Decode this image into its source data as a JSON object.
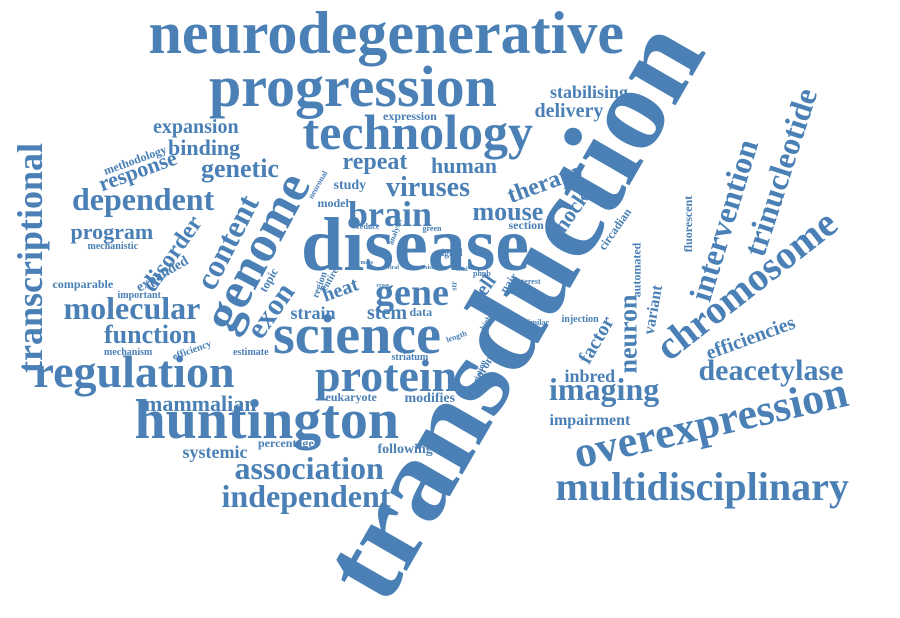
{
  "cloud": {
    "color": "#4a80b5",
    "words": [
      {
        "text": "transduction",
        "angle": -60
      },
      {
        "text": "disease",
        "angle": 0
      },
      {
        "text": "neurodegenerative",
        "angle": 0
      },
      {
        "text": "progression",
        "angle": 0
      },
      {
        "text": "technology",
        "angle": 0
      },
      {
        "text": "huntington",
        "angle": 0
      },
      {
        "text": "science",
        "angle": 0
      },
      {
        "text": "overexpression",
        "angle": -13
      },
      {
        "text": "multidisciplinary",
        "angle": 0
      },
      {
        "text": "chromosome",
        "angle": -38
      },
      {
        "text": "regulation",
        "angle": 0
      },
      {
        "text": "protein",
        "angle": 0
      },
      {
        "text": "transcriptional",
        "angle": -90
      },
      {
        "text": "genome",
        "angle": -62
      },
      {
        "text": "trinucleotide",
        "angle": -72
      },
      {
        "text": "intervention",
        "angle": -73
      },
      {
        "text": "gene",
        "angle": 0
      },
      {
        "text": "brain",
        "angle": 0
      },
      {
        "text": "association",
        "angle": 0
      },
      {
        "text": "independent",
        "angle": 0
      },
      {
        "text": "deacetylase",
        "angle": 0
      },
      {
        "text": "dependent",
        "angle": 0
      },
      {
        "text": "molecular",
        "angle": 0
      },
      {
        "text": "imaging",
        "angle": 0
      },
      {
        "text": "content",
        "angle": -63
      },
      {
        "text": "exon",
        "angle": -55
      },
      {
        "text": "viruses",
        "angle": 0
      },
      {
        "text": "mouse",
        "angle": 0
      },
      {
        "text": "function",
        "angle": 0
      },
      {
        "text": "efficiencies",
        "angle": -20
      },
      {
        "text": "genetic",
        "angle": 0
      },
      {
        "text": "repeat",
        "angle": 0
      },
      {
        "text": "therapy",
        "angle": -20
      },
      {
        "text": "neuron",
        "angle": -90
      },
      {
        "text": "disorder",
        "angle": -55
      },
      {
        "text": "mammalian",
        "angle": 0
      },
      {
        "text": "binding",
        "angle": 0
      },
      {
        "text": "response",
        "angle": -20
      },
      {
        "text": "program",
        "angle": 0
      },
      {
        "text": "expansion",
        "angle": 0
      },
      {
        "text": "stabilising",
        "angle": 0
      },
      {
        "text": "delivery",
        "angle": 0
      },
      {
        "text": "human",
        "angle": 0
      },
      {
        "text": "shock",
        "angle": -55
      },
      {
        "text": "cell",
        "angle": -55
      },
      {
        "text": "stem",
        "angle": 0
      },
      {
        "text": "factor",
        "angle": -60
      },
      {
        "text": "variant",
        "angle": -80
      },
      {
        "text": "inbred",
        "angle": 0
      },
      {
        "text": "impairment",
        "angle": 0
      },
      {
        "text": "systemic",
        "angle": 0
      },
      {
        "text": "percentage",
        "angle": 0
      },
      {
        "text": "following",
        "angle": 0
      },
      {
        "text": "eukaryote",
        "angle": 0
      },
      {
        "text": "modifies",
        "angle": 0
      },
      {
        "text": "heat",
        "angle": -20
      },
      {
        "text": "strain",
        "angle": 0
      },
      {
        "text": "expanded",
        "angle": -30
      },
      {
        "text": "methodology",
        "angle": -20
      },
      {
        "text": "comparable",
        "angle": 0
      },
      {
        "text": "mechanistic",
        "angle": 0
      },
      {
        "text": "important",
        "angle": 0
      },
      {
        "text": "mechanism",
        "angle": 0
      },
      {
        "text": "efficiency",
        "angle": -20
      },
      {
        "text": "estimate",
        "angle": 0
      },
      {
        "text": "automated",
        "angle": -90
      },
      {
        "text": "fluorescent",
        "angle": -90
      },
      {
        "text": "circadian",
        "angle": -55
      },
      {
        "text": "expression",
        "angle": 0
      },
      {
        "text": "study",
        "angle": 0
      },
      {
        "text": "model",
        "angle": 0
      },
      {
        "text": "topic",
        "angle": -60
      },
      {
        "text": "section",
        "angle": 0
      },
      {
        "text": "data",
        "angle": 0
      },
      {
        "text": "signal",
        "angle": 0
      },
      {
        "text": "injection",
        "angle": 0
      },
      {
        "text": "coronal",
        "angle": -60
      },
      {
        "text": "striatum",
        "angle": 0
      },
      {
        "text": "pair",
        "angle": -55
      },
      {
        "text": "phpb",
        "angle": 0
      },
      {
        "text": "interest",
        "angle": 0
      },
      {
        "text": "insight",
        "angle": 0
      },
      {
        "text": "similar",
        "angle": 0
      },
      {
        "text": "region",
        "angle": -70
      },
      {
        "text": "entire",
        "angle": -60
      },
      {
        "text": "analysis",
        "angle": -70
      },
      {
        "text": "neuronal",
        "angle": -60
      },
      {
        "text": "reduce",
        "angle": 0
      },
      {
        "text": "green",
        "angle": 0
      },
      {
        "text": "variation",
        "angle": -70
      },
      {
        "text": "length",
        "angle": -20
      },
      {
        "text": "higher",
        "angle": -60
      },
      {
        "text": "cross",
        "angle": 0
      },
      {
        "text": "str",
        "angle": -90
      },
      {
        "text": "mass",
        "angle": 0
      },
      {
        "text": "viral",
        "angle": 0
      },
      {
        "text": "exist",
        "angle": 0
      },
      {
        "text": "total",
        "angle": 0
      }
    ]
  }
}
